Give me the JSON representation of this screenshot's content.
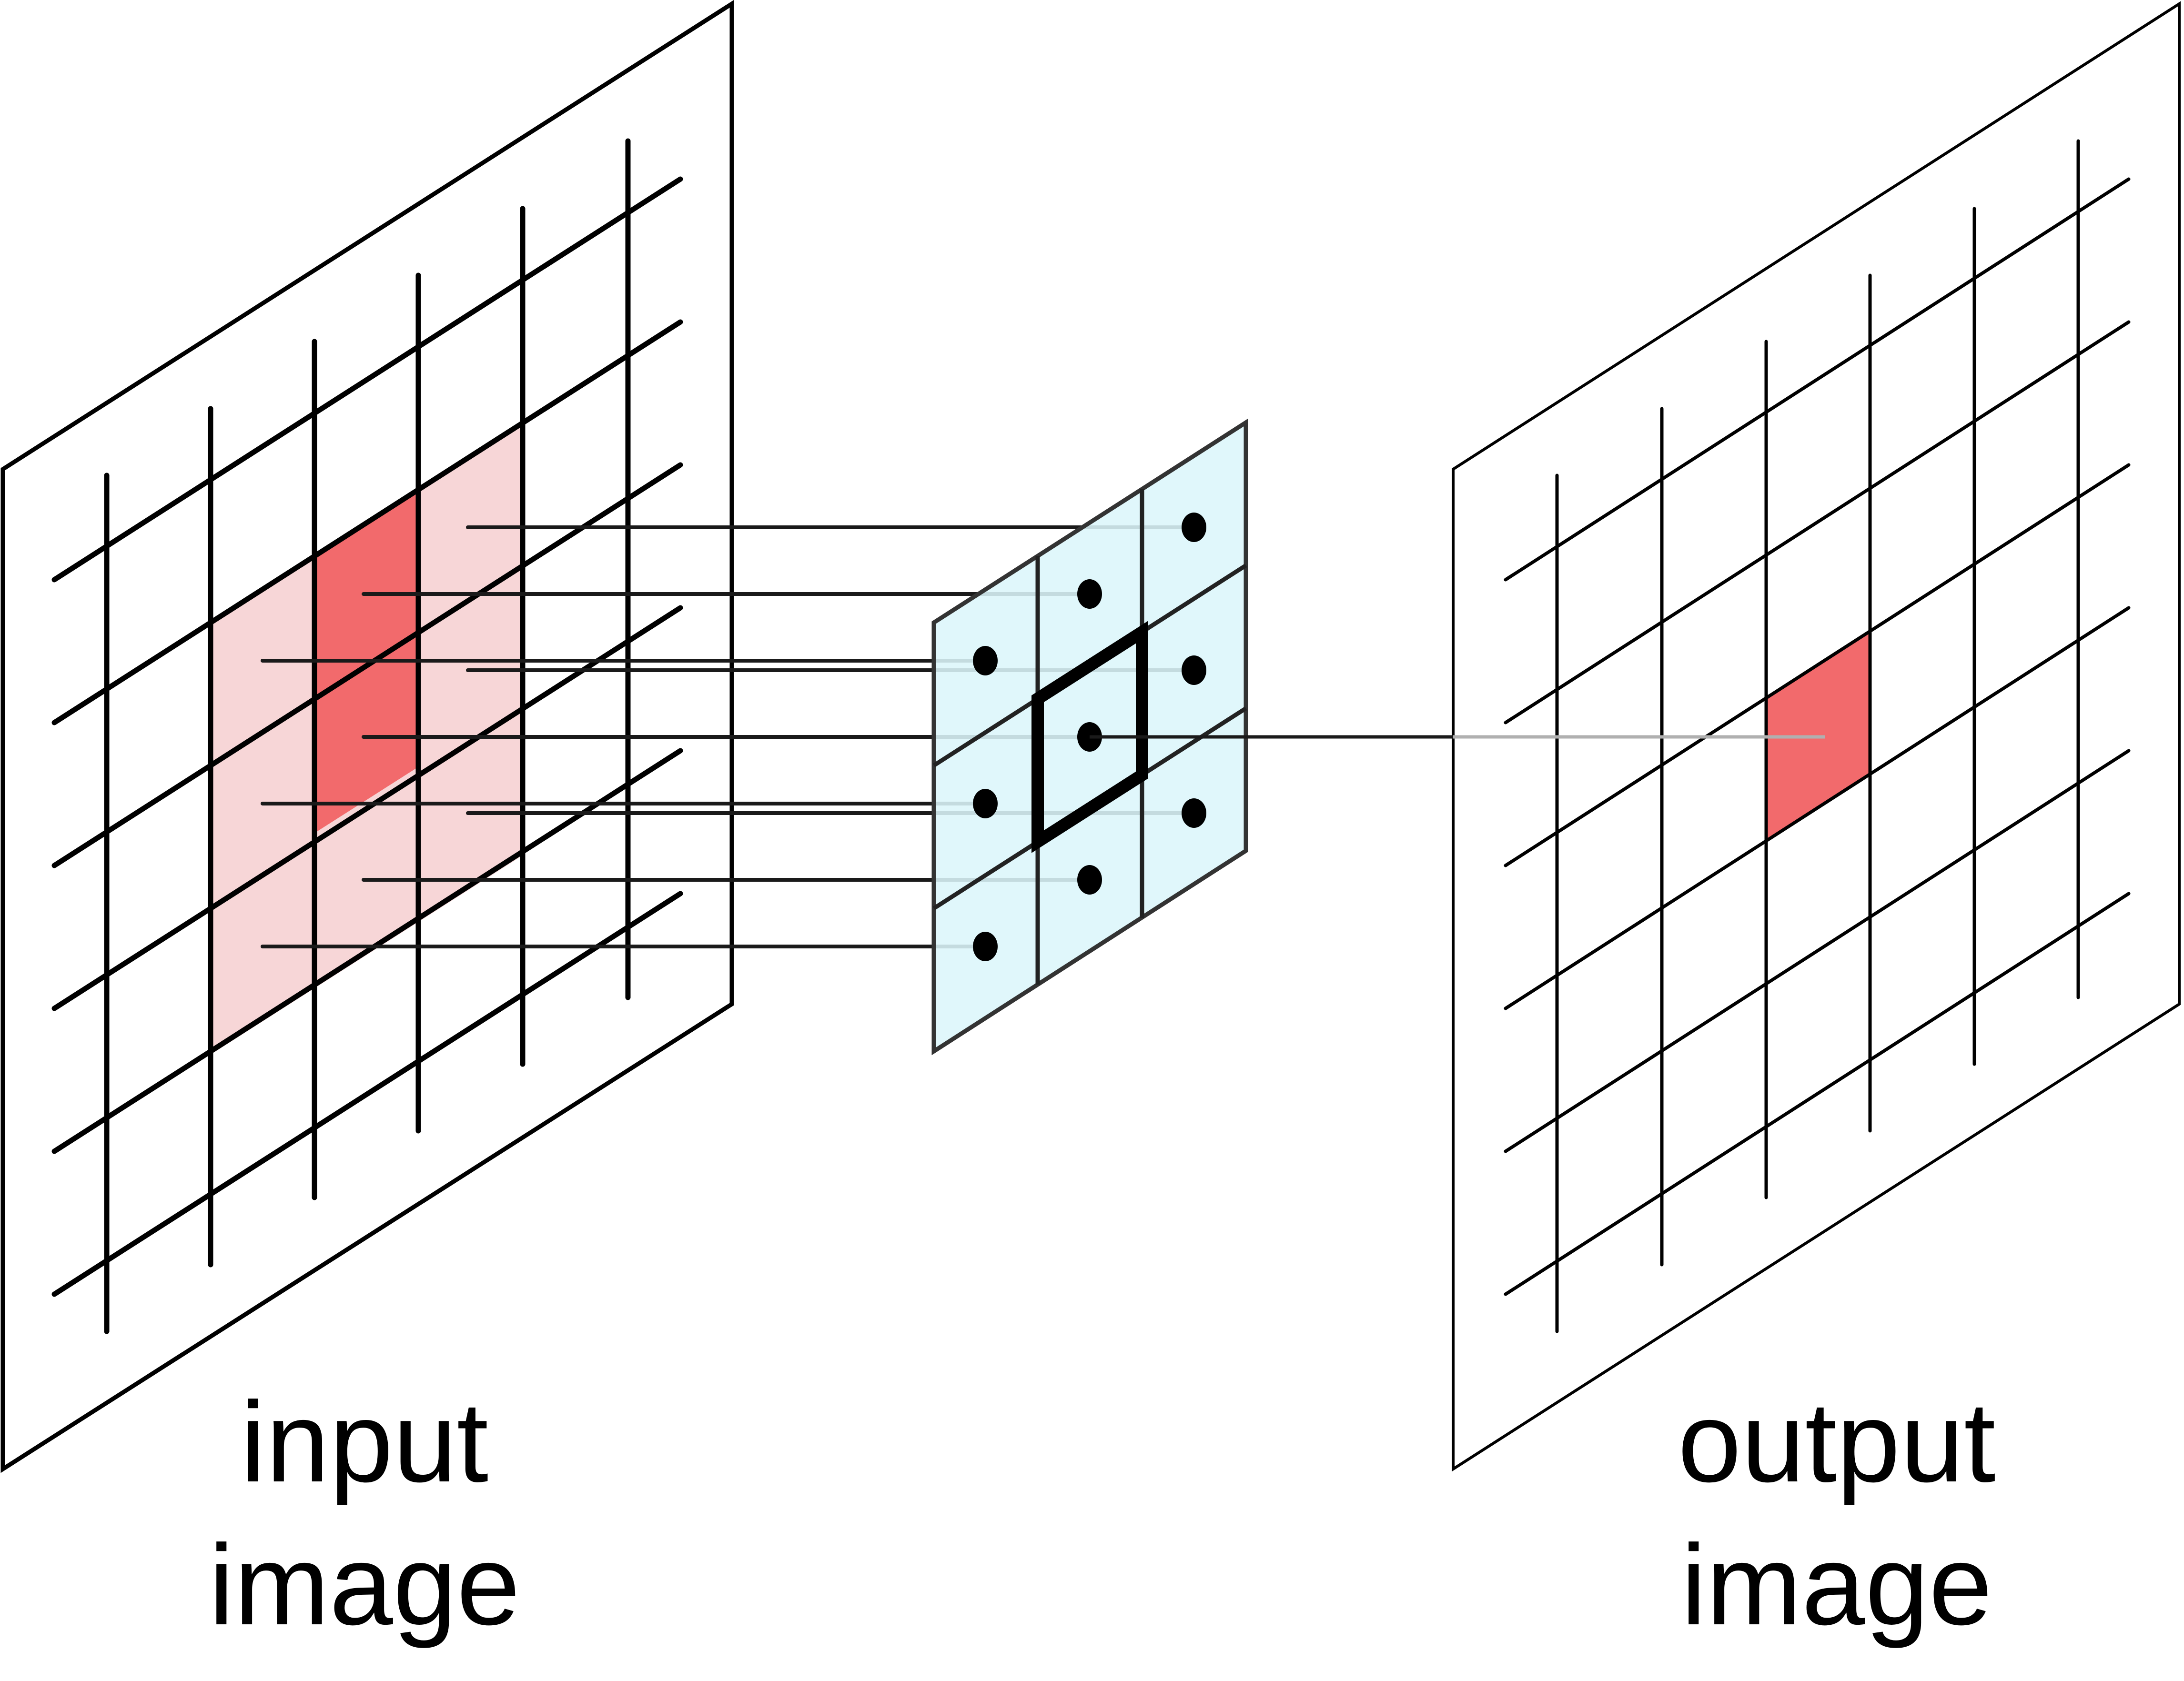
{
  "labels": {
    "input_line1": "input",
    "input_line2": "image",
    "output_line1": "output",
    "output_line2": "image"
  },
  "input_grid": {
    "columns": 6,
    "rows": 6
  },
  "output_grid": {
    "columns": 6,
    "rows": 6
  },
  "kernel": {
    "size": 3,
    "sample_points": 9
  },
  "colors": {
    "neighborhood": "#f7d6d7",
    "center_pixel": "#f26a6c",
    "kernel_fill": "#dcf6fa",
    "stroke": "#000000"
  }
}
